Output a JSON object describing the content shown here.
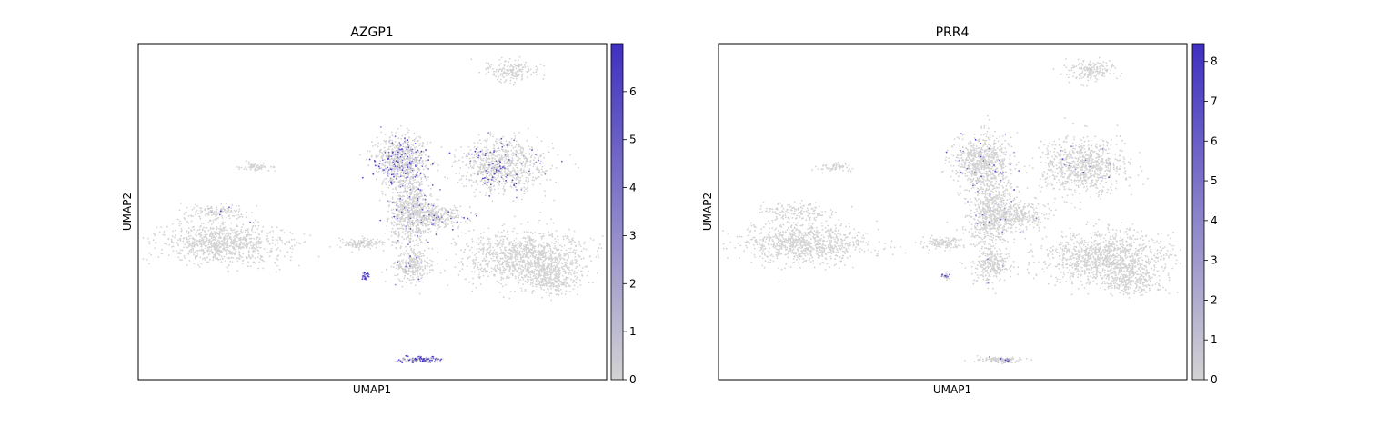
{
  "chart_data": [
    {
      "type": "scatter",
      "title": "AZGP1",
      "xlabel": "UMAP1",
      "ylabel": "UMAP2",
      "colorbar": {
        "ticks": [
          0,
          1,
          2,
          3,
          4,
          5,
          6
        ],
        "range": [
          0,
          7
        ]
      },
      "grid": false,
      "high_expression_regions": [
        "upper-left lobe of central cluster",
        "upper-right cluster",
        "small satellite clusters",
        "bottom elongated cluster"
      ]
    },
    {
      "type": "scatter",
      "title": "PRR4",
      "xlabel": "UMAP1",
      "ylabel": "UMAP2",
      "colorbar": {
        "ticks": [
          0,
          1,
          2,
          3,
          4,
          5,
          6,
          7,
          8
        ],
        "range": [
          0,
          8.45
        ]
      },
      "grid": false,
      "high_expression_regions": [
        "small satellite cluster"
      ]
    }
  ],
  "colors": {
    "low": "#d3d3d3",
    "high": "#3f2fc0",
    "frame": "#000000"
  }
}
